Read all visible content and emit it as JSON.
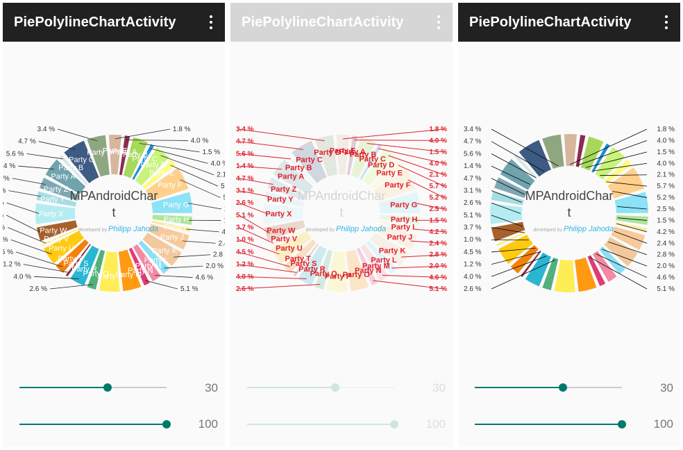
{
  "screens": [
    {
      "id": "screen-normal",
      "mode": "normal",
      "title": "PiePolylineChartActivity",
      "menu_icon": "overflow-menu-icon",
      "appbar_color": "#212121",
      "title_color": "#ffffff",
      "center_text_1": "MPAndroidChar",
      "center_text_2": "t",
      "center_credit_1": "developed by",
      "center_credit_2": "Philipp Jahoda",
      "seek_x": {
        "value": 30,
        "fraction": 0.6
      },
      "seek_y": {
        "value": 100,
        "fraction": 1.0
      }
    },
    {
      "id": "screen-debug",
      "mode": "debug",
      "title": "PiePolylineChartActivity",
      "menu_icon": "overflow-menu-icon",
      "appbar_color": "#d6d6d6",
      "title_color": "#ffffff",
      "center_text_1": "MPAndroidChar",
      "center_text_2": "t",
      "center_credit_1": "developed by",
      "center_credit_2": "Philipp Jahoda",
      "seek_x": {
        "value": 30,
        "fraction": 0.6
      },
      "seek_y": {
        "value": 100,
        "fraction": 1.0
      }
    },
    {
      "id": "screen-lines",
      "mode": "lines",
      "title": "PiePolylineChartActivity",
      "menu_icon": "overflow-menu-icon",
      "appbar_color": "#212121",
      "title_color": "#ffffff",
      "center_text_1": "MPAndroidChar",
      "center_text_2": "t",
      "center_credit_1": "developed by",
      "center_credit_2": "Philipp Jahoda",
      "seek_x": {
        "value": 30,
        "fraction": 0.6
      },
      "seek_y": {
        "value": 100,
        "fraction": 1.0
      }
    }
  ],
  "colors": {
    "accent": "#00796b",
    "debug_red": "#e0202c",
    "label_text": "#333333"
  },
  "chart_data": {
    "type": "pie",
    "donut": true,
    "value_unit": "%",
    "slices": [
      {
        "label": "Party A",
        "value": 1.8,
        "color": "#8b2c4d"
      },
      {
        "label": "Party B",
        "value": 4.0,
        "color": "#a7d85a"
      },
      {
        "label": "Party C",
        "value": 1.5,
        "color": "#1d8fd2"
      },
      {
        "label": "Party D",
        "value": 4.0,
        "color": "#c8f47a"
      },
      {
        "label": "Party E",
        "value": 2.1,
        "color": "#fffa80"
      },
      {
        "label": "Party F",
        "value": 5.7,
        "color": "#ffd08c"
      },
      {
        "label": "Party G",
        "value": 5.2,
        "color": "#8ce2f6"
      },
      {
        "label": "Party H",
        "value": 2.5,
        "color": "#aee59b"
      },
      {
        "label": "Party I",
        "value": 1.5,
        "color": "#fde89a"
      },
      {
        "label": "Party J",
        "value": 4.0,
        "color": "#f8c99a"
      },
      {
        "label": "Party K",
        "value": 4.2,
        "color": "#f3c89c"
      },
      {
        "label": "Party L",
        "value": 2.4,
        "color": "#8bdff3"
      },
      {
        "label": "Party M",
        "value": 2.8,
        "color": "#f28aa3"
      },
      {
        "label": "Party N",
        "value": 2.0,
        "color": "#e03b73"
      },
      {
        "label": "Party O",
        "value": 4.6,
        "color": "#ff9a12"
      },
      {
        "label": "Party P",
        "value": 5.1,
        "color": "#ffed55"
      },
      {
        "label": "Party Q",
        "value": 2.6,
        "color": "#52b07a"
      },
      {
        "label": "Party R",
        "value": 4.0,
        "color": "#28b6d2"
      },
      {
        "label": "Party S",
        "value": 1.2,
        "color": "#8d2f45"
      },
      {
        "label": "Party T",
        "value": 2.8,
        "color": "#f2820a"
      },
      {
        "label": "Party U",
        "value": 4.5,
        "color": "#ffca0f"
      },
      {
        "label": "Party V",
        "value": 1.0,
        "color": "#ffe640"
      },
      {
        "label": "Party W",
        "value": 3.7,
        "color": "#a8602c"
      },
      {
        "label": "Party X",
        "value": 5.1,
        "color": "#b4ecf2"
      },
      {
        "label": "Party Y",
        "value": 2.6,
        "color": "#a6dde2"
      },
      {
        "label": "Party Z",
        "value": 3.1,
        "color": "#7fa7b2"
      },
      {
        "label": "Party A",
        "value": 4.7,
        "color": "#6fa3ad"
      },
      {
        "label": "Party B",
        "value": 1.4,
        "color": "#d6e7ea"
      },
      {
        "label": "Party C",
        "value": 5.6,
        "color": "#3d5b83"
      },
      {
        "label": "Party D",
        "value": 4.7,
        "color": "#8fa780"
      },
      {
        "label": "Party E",
        "value": 3.4,
        "color": "#d7b69e"
      }
    ],
    "left_column_labels": [
      "3.4 %",
      "4.7 %",
      "5.6 %",
      "1.4 %",
      "4.7 %",
      "3.1 %",
      "2.6 %",
      "5.1 %",
      "3.7 %",
      "1.0 %",
      "4.5 %",
      "1.2 %",
      "4.0 %",
      "2.6 %"
    ],
    "right_column_labels": [
      "1.8 %",
      "4.0 %",
      "1.5 %",
      "4.0 %",
      "2.1 %",
      "5.7 %",
      "5.2 %",
      "2.5 %",
      "1.5 %",
      "4.2 %",
      "2.4 %",
      "2.8 %",
      "2.0 %",
      "4.6 %",
      "5.1 %"
    ]
  }
}
